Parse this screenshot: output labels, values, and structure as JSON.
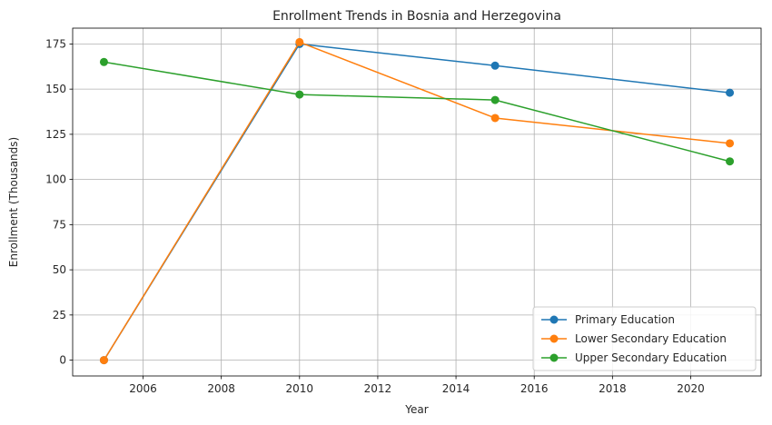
{
  "chart_data": {
    "type": "line",
    "title": "Enrollment Trends in Bosnia and Herzegovina",
    "xlabel": "Year",
    "ylabel": "Enrollment (Thousands)",
    "xlim": [
      2004.2,
      2021.8
    ],
    "ylim": [
      -8.75,
      183.75
    ],
    "xticks": [
      2006,
      2008,
      2010,
      2012,
      2014,
      2016,
      2018,
      2020
    ],
    "yticks": [
      0,
      25,
      50,
      75,
      100,
      125,
      150,
      175
    ],
    "grid": true,
    "legend_position": "lower-right",
    "x": [
      2005,
      2010,
      2015,
      2021
    ],
    "series": [
      {
        "name": "Primary Education",
        "color": "#1f77b4",
        "values": [
          0,
          175,
          163,
          148
        ]
      },
      {
        "name": "Lower Secondary Education",
        "color": "#ff7f0e",
        "values": [
          0,
          176,
          134,
          120
        ]
      },
      {
        "name": "Upper Secondary Education",
        "color": "#2ca02c",
        "values": [
          165,
          147,
          144,
          110
        ]
      }
    ]
  }
}
